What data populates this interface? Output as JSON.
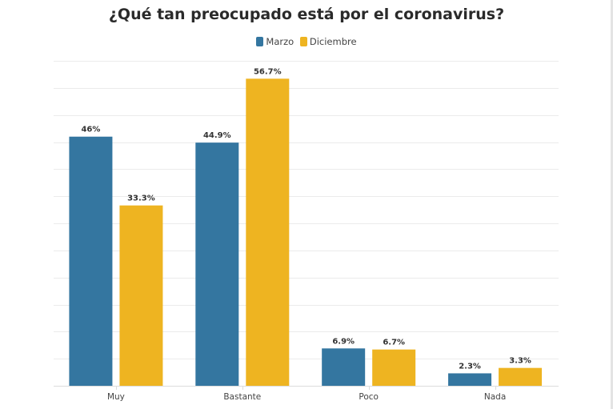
{
  "chart_data": {
    "type": "bar",
    "title": "¿Qué tan preocupado está por el coronavirus?",
    "categories": [
      "Muy",
      "Bastante",
      "Poco",
      "Nada"
    ],
    "series": [
      {
        "name": "Marzo",
        "color": "#3476a0",
        "values": [
          46,
          44.9,
          6.9,
          2.3
        ],
        "labels": [
          "46%",
          "44.9%",
          "6.9%",
          "2.3%"
        ]
      },
      {
        "name": "Diciembre",
        "color": "#eeb421",
        "values": [
          33.3,
          56.7,
          6.7,
          3.3
        ],
        "labels": [
          "33.3%",
          "56.7%",
          "6.7%",
          "3.3%"
        ]
      }
    ],
    "xlabel": "",
    "ylabel": "",
    "ylim": [
      0,
      60
    ],
    "grid": true,
    "grid_step": 5,
    "legend": "top-center"
  }
}
